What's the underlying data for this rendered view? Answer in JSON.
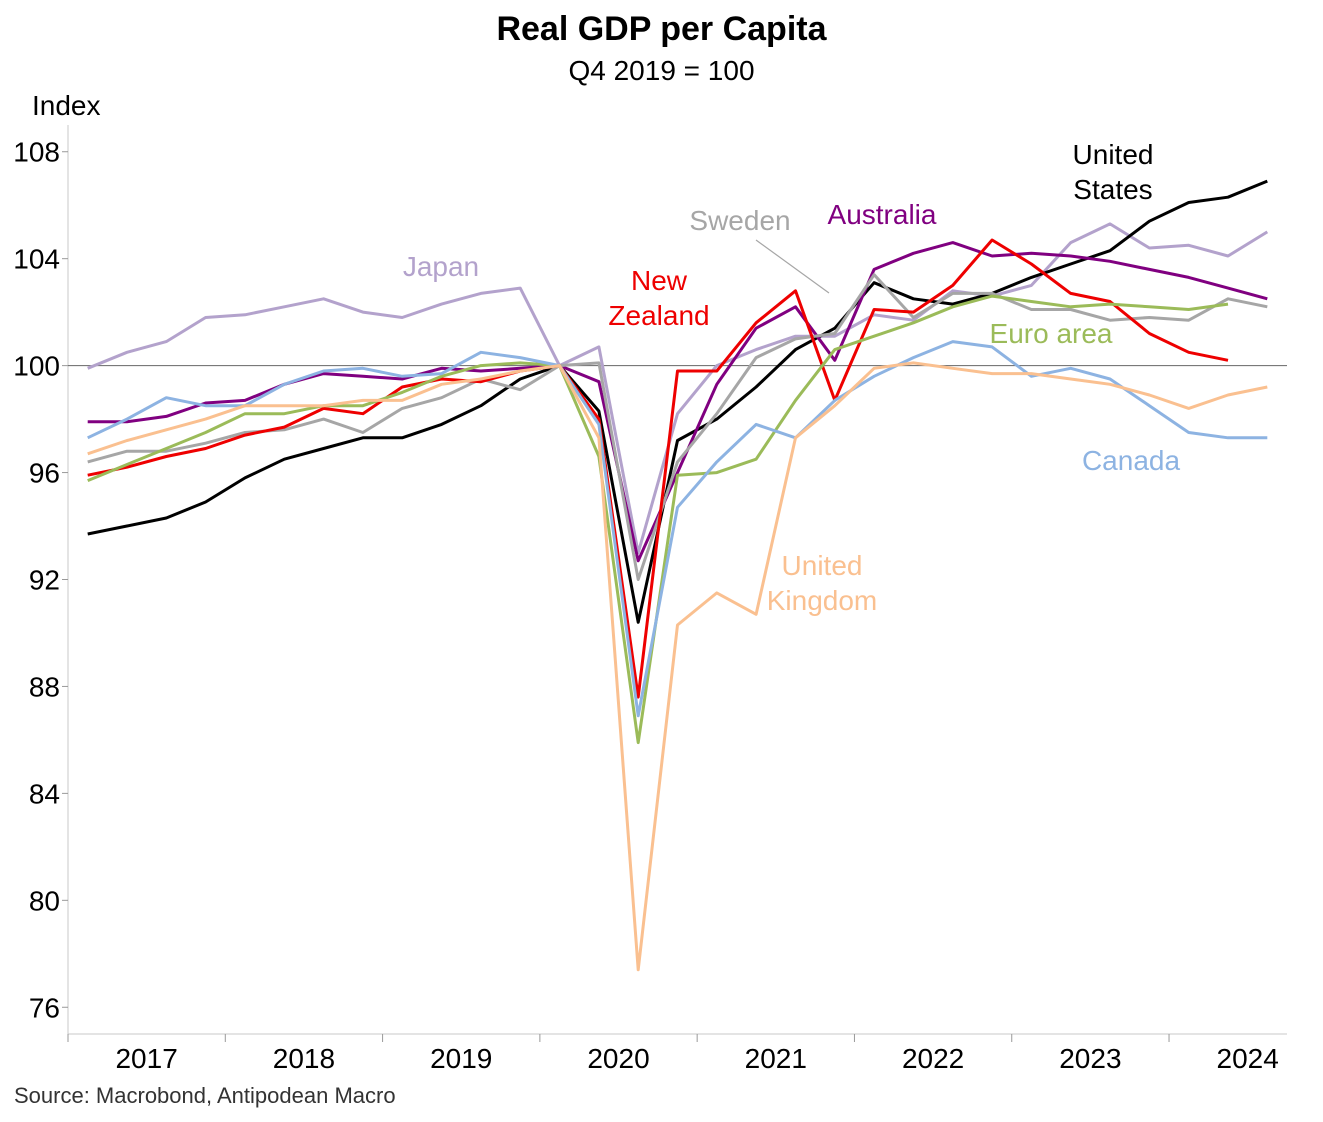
{
  "chart_data": {
    "type": "line",
    "title": "Real GDP per Capita",
    "subtitle": "Q4 2019 = 100",
    "ylabel": "Index",
    "xlabel": "",
    "ylim": [
      75,
      109
    ],
    "yticks": [
      76,
      80,
      84,
      88,
      92,
      96,
      100,
      104,
      108
    ],
    "x_start": 2017.0,
    "x_end": 2024.75,
    "year_ticks": [
      "2017",
      "2018",
      "2019",
      "2020",
      "2021",
      "2022",
      "2023",
      "2024"
    ],
    "reference_line": 100,
    "grid": false,
    "source": "Source: Macrobond, Antipodean Macro",
    "series": [
      {
        "name": "Japan",
        "label": "Japan",
        "color": "#b3a2cc",
        "values": [
          99.9,
          100.5,
          100.9,
          101.8,
          101.9,
          102.2,
          102.5,
          102.0,
          101.8,
          102.3,
          102.7,
          102.9,
          100.0,
          100.7,
          93.0,
          98.2,
          100.0,
          100.6,
          101.1,
          101.1,
          101.9,
          101.7,
          102.8,
          102.6,
          103.0,
          104.6,
          105.3,
          104.4,
          104.5,
          104.1,
          105.0
        ]
      },
      {
        "name": "United States",
        "label": [
          "United",
          "States"
        ],
        "color": "#000000",
        "values": [
          93.7,
          94.0,
          94.3,
          94.9,
          95.8,
          96.5,
          96.9,
          97.3,
          97.3,
          97.8,
          98.5,
          99.5,
          100.0,
          98.3,
          90.4,
          97.2,
          98.0,
          99.2,
          100.6,
          101.4,
          103.1,
          102.5,
          102.3,
          102.7,
          103.3,
          103.8,
          104.3,
          105.4,
          106.1,
          106.3,
          106.9
        ]
      },
      {
        "name": "Australia",
        "label": "Australia",
        "color": "#800080",
        "values": [
          97.9,
          97.9,
          98.1,
          98.6,
          98.7,
          99.3,
          99.7,
          99.6,
          99.5,
          99.9,
          99.8,
          99.9,
          100.0,
          99.4,
          92.7,
          96.0,
          99.3,
          101.4,
          102.2,
          100.2,
          103.6,
          104.2,
          104.6,
          104.1,
          104.2,
          104.1,
          103.9,
          103.6,
          103.3,
          102.9,
          102.5
        ]
      },
      {
        "name": "Sweden",
        "label": "Sweden",
        "color": "#a6a6a6",
        "values": [
          96.4,
          96.8,
          96.8,
          97.1,
          97.5,
          97.6,
          98.0,
          97.5,
          98.4,
          98.8,
          99.5,
          99.1,
          100.0,
          100.1,
          92.0,
          96.4,
          98.2,
          100.3,
          101.0,
          101.2,
          103.4,
          101.8,
          102.7,
          102.7,
          102.1,
          102.1,
          101.7,
          101.8,
          101.7,
          102.5,
          102.2
        ]
      },
      {
        "name": "New Zealand",
        "label": [
          "New",
          "Zealand"
        ],
        "color": "#ee0000",
        "values": [
          95.9,
          96.2,
          96.6,
          96.9,
          97.4,
          97.7,
          98.4,
          98.2,
          99.2,
          99.5,
          99.4,
          99.8,
          100.0,
          98.0,
          87.6,
          99.8,
          99.8,
          101.6,
          102.8,
          98.7,
          102.1,
          102.0,
          103.0,
          104.7,
          103.8,
          102.7,
          102.4,
          101.2,
          100.5,
          100.2
        ]
      },
      {
        "name": "Euro area",
        "label": "Euro area",
        "color": "#9bbb59",
        "values": [
          95.7,
          96.3,
          96.9,
          97.5,
          98.2,
          98.2,
          98.5,
          98.5,
          99.0,
          99.6,
          100.0,
          100.1,
          100.0,
          96.6,
          85.9,
          95.9,
          96.0,
          96.5,
          98.7,
          100.6,
          101.1,
          101.6,
          102.2,
          102.6,
          102.4,
          102.2,
          102.3,
          102.2,
          102.1,
          102.3
        ]
      },
      {
        "name": "Canada",
        "label": "Canada",
        "color": "#8db3e2",
        "values": [
          97.3,
          98.0,
          98.8,
          98.5,
          98.5,
          99.3,
          99.8,
          99.9,
          99.6,
          99.7,
          100.5,
          100.3,
          100.0,
          97.8,
          86.9,
          94.7,
          96.4,
          97.8,
          97.3,
          98.7,
          99.6,
          100.3,
          100.9,
          100.7,
          99.6,
          99.9,
          99.5,
          98.5,
          97.5,
          97.3,
          97.3
        ]
      },
      {
        "name": "United Kingdom",
        "label": [
          "United",
          "Kingdom"
        ],
        "color": "#fac090",
        "values": [
          96.7,
          97.2,
          97.6,
          98.0,
          98.5,
          98.5,
          98.5,
          98.7,
          98.7,
          99.3,
          99.5,
          99.8,
          100.0,
          97.3,
          77.4,
          90.3,
          91.5,
          90.7,
          97.3,
          98.5,
          99.9,
          100.1,
          99.9,
          99.7,
          99.7,
          99.5,
          99.3,
          98.9,
          98.4,
          98.9,
          99.2
        ]
      }
    ]
  },
  "labels_order": [
    "Japan",
    "United States",
    "Australia",
    "Sweden",
    "New Zealand",
    "Euro area",
    "Canada",
    "United Kingdom"
  ]
}
